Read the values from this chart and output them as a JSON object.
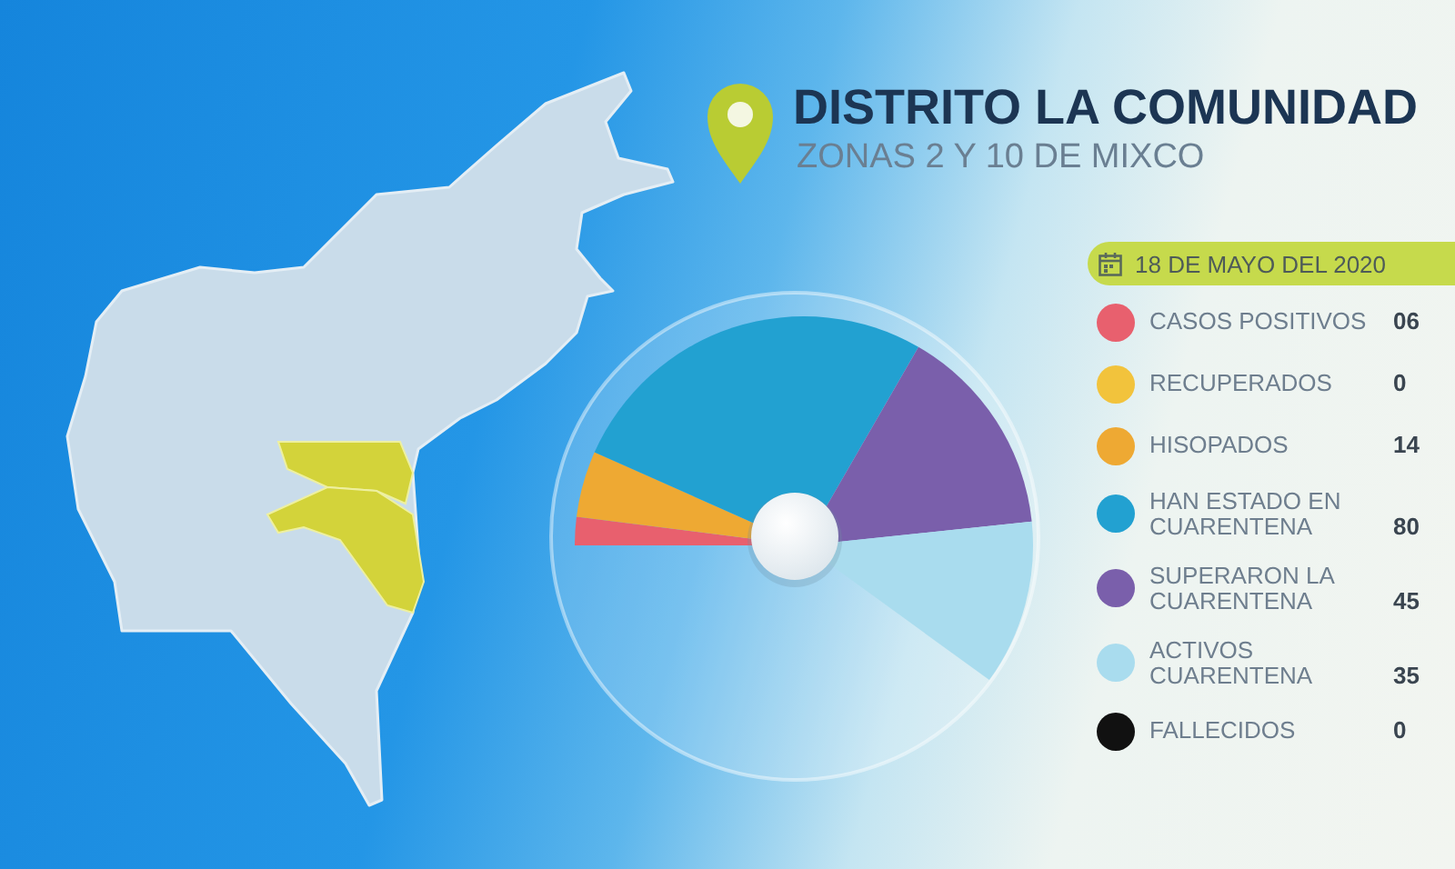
{
  "chart_data": {
    "type": "pie",
    "title": "DISTRITO LA COMUNIDAD",
    "subtitle": "ZONAS 2 Y 10 DE MIXCO",
    "legend_title": "18 DE MAYO DEL 2020",
    "categories": [
      "CASOS POSITIVOS",
      "RECUPERADOS",
      "HISOPADOS",
      "HAN ESTADO EN CUARENTENA",
      "SUPERARON LA CUARENTENA",
      "ACTIVOS CUARENTENA",
      "FALLECIDOS"
    ],
    "values": [
      6,
      0,
      14,
      80,
      45,
      35,
      0
    ],
    "value_labels": [
      "06",
      "0",
      "14",
      "80",
      "45",
      "35",
      "0"
    ],
    "colors": [
      "#e8606e",
      "#f2c33c",
      "#eea933",
      "#22a1d1",
      "#7a5fab",
      "#a9dcee",
      "#111111"
    ],
    "legend": "right"
  }
}
